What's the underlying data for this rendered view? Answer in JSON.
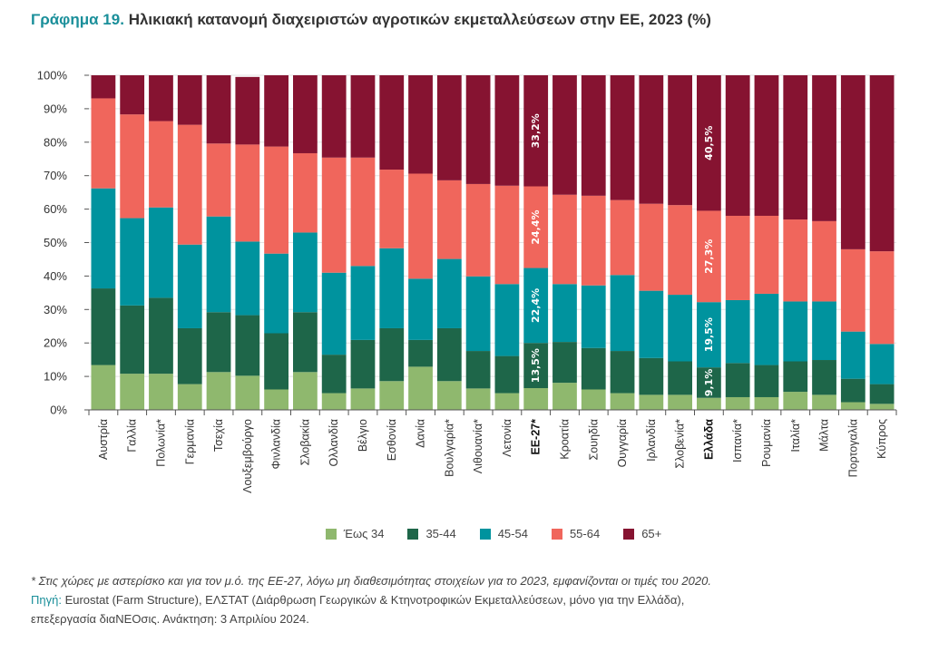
{
  "title": {
    "number": "Γράφημα 19.",
    "text": "Ηλικιακή κατανομή διαχειριστών αγροτικών εκμεταλλεύσεων στην ΕΕ, 2023 (%)"
  },
  "chart_data": {
    "type": "bar",
    "stacked": true,
    "orientation": "vertical",
    "ylim": [
      0,
      100
    ],
    "yticks": [
      "0%",
      "10%",
      "20%",
      "30%",
      "40%",
      "50%",
      "60%",
      "70%",
      "80%",
      "90%",
      "100%"
    ],
    "grid": true,
    "legend_position": "bottom",
    "categories": [
      "Αυστρία",
      "Γαλλία",
      "Πολωνία*",
      "Γερμανία",
      "Τσεχία",
      "Λουξεμβούργο",
      "Φινλανδία",
      "Σλοβακία",
      "Ολλανδία",
      "Βέλγιο",
      "Εσθονία",
      "Δανία",
      "Βουλγαρία*",
      "Λιθουανία*",
      "Λετονία",
      "ΕΕ-27*",
      "Κροατία",
      "Σουηδία",
      "Ουγγαρία",
      "Ιρλανδία",
      "Σλοβενία*",
      "Ελλάδα",
      "Ισπανία*",
      "Ρουμανία",
      "Ιταλία*",
      "Μάλτα",
      "Πορτογαλία",
      "Κύπρος"
    ],
    "highlighted_categories": [
      "ΕΕ-27*",
      "Ελλάδα"
    ],
    "series": [
      {
        "name": "Έως 34",
        "color": "#8fb86e",
        "values": [
          13.4,
          10.8,
          10.8,
          7.7,
          11.3,
          10.2,
          6.1,
          11.3,
          5.0,
          6.4,
          8.6,
          12.9,
          8.6,
          6.4,
          5.0,
          6.5,
          8.1,
          6.1,
          5.0,
          4.5,
          4.5,
          3.6,
          3.8,
          3.8,
          5.4,
          4.5,
          2.3,
          1.8
        ]
      },
      {
        "name": "35-44",
        "color": "#1e6649",
        "values": [
          22.9,
          20.4,
          22.7,
          16.7,
          17.9,
          18.1,
          16.8,
          17.9,
          11.5,
          14.5,
          15.8,
          8.0,
          15.8,
          11.2,
          11.1,
          13.5,
          12.2,
          12.4,
          12.6,
          11.0,
          10.0,
          9.1,
          10.2,
          9.6,
          9.1,
          10.4,
          7.0,
          5.9
        ]
      },
      {
        "name": "45-54",
        "color": "#00939e",
        "values": [
          29.9,
          26.1,
          27.0,
          25.0,
          28.6,
          22.0,
          23.8,
          23.8,
          24.5,
          22.1,
          23.9,
          18.3,
          20.7,
          22.3,
          21.5,
          22.4,
          17.3,
          18.7,
          22.7,
          20.1,
          19.9,
          19.5,
          18.8,
          21.3,
          17.9,
          17.5,
          14.1,
          12.0
        ]
      },
      {
        "name": "55-64",
        "color": "#f0665c",
        "values": [
          26.9,
          31.0,
          25.8,
          35.8,
          21.8,
          29.0,
          32.0,
          23.7,
          34.4,
          32.4,
          23.5,
          31.4,
          23.5,
          27.6,
          29.4,
          24.4,
          26.7,
          26.8,
          22.4,
          26.0,
          26.8,
          27.3,
          25.2,
          23.3,
          24.5,
          24.0,
          24.6,
          27.7
        ]
      },
      {
        "name": "65+",
        "color": "#861331",
        "values": [
          6.9,
          11.7,
          13.7,
          14.8,
          20.4,
          20.2,
          21.3,
          23.3,
          24.6,
          24.6,
          28.2,
          29.4,
          31.4,
          32.5,
          33.0,
          33.2,
          35.7,
          36.0,
          37.3,
          38.4,
          38.8,
          40.5,
          42.0,
          42.0,
          43.1,
          43.6,
          52.0,
          52.6
        ]
      }
    ],
    "data_labels": [
      {
        "category": "ΕΕ-27*",
        "labels": [
          "",
          "13,5%",
          "22,4%",
          "24,4%",
          "33,2%"
        ]
      },
      {
        "category": "Ελλάδα",
        "labels": [
          "",
          "9,1%",
          "19,5%",
          "27,3%",
          "40,5%"
        ]
      }
    ]
  },
  "notes": {
    "footnote": "* Στις χώρες με αστερίσκο και για τον μ.ό. της ΕΕ-27, λόγω μη διαθεσιμότητας στοιχείων για το 2023, εμφανίζονται οι τιμές του 2020.",
    "source_label": "Πηγή:",
    "source_text": " Eurostat (Farm Structure), ΕΛΣΤΑΤ (Διάρθρωση Γεωργικών & Κτηνοτροφικών Εκμεταλλεύσεων, μόνο για την Ελλάδα),",
    "source_text2": "επεξεργασία διαΝΕΟσις. Ανάκτηση: 3 Απριλίου 2024."
  }
}
